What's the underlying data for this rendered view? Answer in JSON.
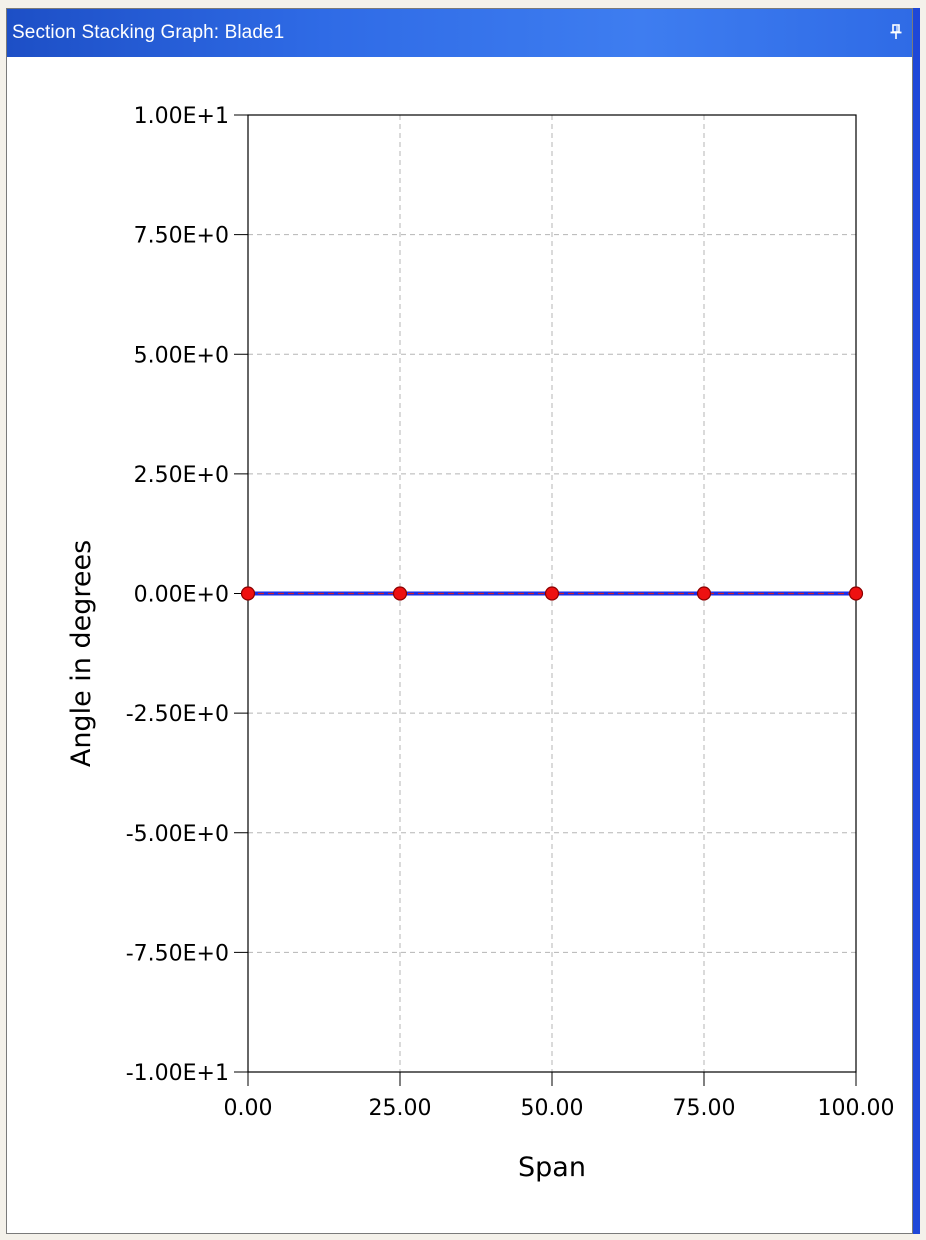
{
  "window": {
    "title": "Section Stacking Graph: Blade1",
    "pin_icon": "pin-icon"
  },
  "colors": {
    "titlebar": "#2f6be6",
    "line": "#1a2ee8",
    "dash": "#d0202a",
    "marker": "#ee1111",
    "grid": "#b5b5b5"
  },
  "chart_data": {
    "type": "line",
    "xlabel": "Span",
    "ylabel": "Angle in degrees",
    "xlim": [
      0,
      100
    ],
    "ylim": [
      -10,
      10
    ],
    "x_ticks": [
      "0.00",
      "25.00",
      "50.00",
      "75.00",
      "100.00"
    ],
    "y_ticks": [
      "1.00E+1",
      "7.50E+0",
      "5.00E+0",
      "2.50E+0",
      "0.00E+0",
      "-2.50E+0",
      "-5.00E+0",
      "-7.50E+0",
      "-1.00E+1"
    ],
    "grid": true,
    "x": [
      0,
      25,
      50,
      75,
      100
    ],
    "y": [
      0,
      0,
      0,
      0,
      0
    ]
  }
}
